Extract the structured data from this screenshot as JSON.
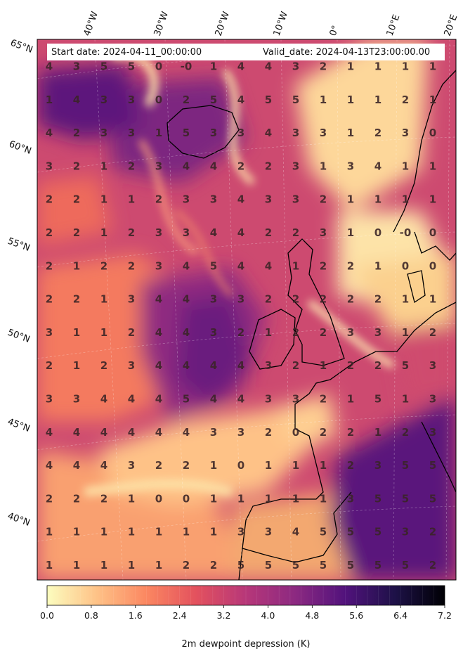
{
  "header": {
    "start_date": "Start date: 2024-04-11_00:00:00",
    "valid_date": "Valid_date: 2024-04-13T23:00:00.00"
  },
  "colorbar": {
    "label": "2m dewpoint depression (K)",
    "ticks": [
      "0.0",
      "0.8",
      "1.6",
      "2.4",
      "3.2",
      "4.0",
      "4.8",
      "5.6",
      "6.4",
      "7.2"
    ],
    "vmin": 0.0,
    "vmax": 7.2,
    "n_levels": 36,
    "colormap": "magma_r",
    "stops": [
      "#fcfdbf",
      "#fec287",
      "#fb8761",
      "#e3515e",
      "#b73779",
      "#8c2981",
      "#51127c",
      "#1d1147",
      "#000004"
    ]
  },
  "map": {
    "projection": "rotated lat-lon (Lambert-like)",
    "gridlines": true,
    "coastlines": true,
    "lon_labels": [
      "40°W",
      "30°W",
      "20°W",
      "10°W",
      "0°",
      "10°E",
      "20°E"
    ],
    "lat_labels": [
      "65°N",
      "60°N",
      "55°N",
      "50°N",
      "45°N",
      "40°N"
    ]
  },
  "grid_values": [
    [
      "4",
      "3",
      "5",
      "5",
      "0",
      "-0",
      "1",
      "4",
      "4",
      "3",
      "2",
      "1",
      "1",
      "1",
      "1"
    ],
    [
      "1",
      "4",
      "3",
      "3",
      "0",
      "2",
      "5",
      "4",
      "5",
      "5",
      "1",
      "1",
      "1",
      "2",
      "1"
    ],
    [
      "4",
      "2",
      "3",
      "3",
      "1",
      "5",
      "3",
      "3",
      "4",
      "3",
      "3",
      "1",
      "2",
      "3",
      "0"
    ],
    [
      "3",
      "2",
      "1",
      "2",
      "3",
      "4",
      "4",
      "2",
      "2",
      "3",
      "1",
      "3",
      "4",
      "1",
      "1"
    ],
    [
      "2",
      "2",
      "1",
      "1",
      "2",
      "3",
      "3",
      "4",
      "3",
      "3",
      "2",
      "1",
      "1",
      "1",
      "1"
    ],
    [
      "2",
      "2",
      "1",
      "2",
      "3",
      "3",
      "4",
      "4",
      "2",
      "2",
      "3",
      "1",
      "0",
      "-0",
      "0"
    ],
    [
      "2",
      "1",
      "2",
      "2",
      "3",
      "4",
      "5",
      "4",
      "4",
      "1",
      "2",
      "2",
      "1",
      "0",
      "0"
    ],
    [
      "2",
      "2",
      "1",
      "3",
      "4",
      "4",
      "3",
      "3",
      "2",
      "2",
      "2",
      "2",
      "2",
      "1",
      "1"
    ],
    [
      "3",
      "1",
      "1",
      "2",
      "4",
      "4",
      "3",
      "2",
      "1",
      "2",
      "2",
      "3",
      "3",
      "1",
      "2"
    ],
    [
      "2",
      "1",
      "2",
      "3",
      "4",
      "4",
      "4",
      "4",
      "3",
      "2",
      "1",
      "2",
      "2",
      "5",
      "3"
    ],
    [
      "3",
      "3",
      "4",
      "4",
      "4",
      "5",
      "4",
      "4",
      "3",
      "3",
      "2",
      "1",
      "5",
      "1",
      "3"
    ],
    [
      "4",
      "4",
      "4",
      "4",
      "4",
      "4",
      "3",
      "3",
      "2",
      "0",
      "2",
      "2",
      "1",
      "2",
      "3"
    ],
    [
      "4",
      "4",
      "4",
      "3",
      "2",
      "2",
      "1",
      "0",
      "1",
      "1",
      "1",
      "2",
      "3",
      "5",
      "5"
    ],
    [
      "2",
      "2",
      "2",
      "1",
      "0",
      "0",
      "1",
      "1",
      "1",
      "1",
      "1",
      "3",
      "5",
      "5",
      "5"
    ],
    [
      "1",
      "1",
      "1",
      "1",
      "1",
      "1",
      "1",
      "3",
      "3",
      "4",
      "5",
      "5",
      "5",
      "3",
      "2"
    ],
    [
      "1",
      "1",
      "1",
      "1",
      "1",
      "2",
      "2",
      "5",
      "5",
      "5",
      "5",
      "5",
      "5",
      "5",
      "2"
    ]
  ]
}
